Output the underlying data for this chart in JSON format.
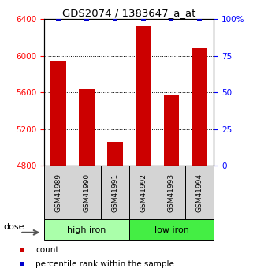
{
  "title": "GDS2074 / 1383647_a_at",
  "categories": [
    "GSM41989",
    "GSM41990",
    "GSM41991",
    "GSM41992",
    "GSM41993",
    "GSM41994"
  ],
  "bar_values": [
    5950,
    5640,
    5060,
    6320,
    5570,
    6080
  ],
  "percentile_values": [
    100,
    100,
    100,
    100,
    100,
    100
  ],
  "bar_color": "#cc0000",
  "dot_color": "#0000cc",
  "ylim_left": [
    4800,
    6400
  ],
  "ylim_right": [
    0,
    100
  ],
  "yticks_left": [
    4800,
    5200,
    5600,
    6000,
    6400
  ],
  "yticks_right": [
    0,
    25,
    50,
    75,
    100
  ],
  "groups": [
    {
      "label": "high iron",
      "indices": [
        0,
        1,
        2
      ],
      "color": "#aaffaa"
    },
    {
      "label": "low iron",
      "indices": [
        3,
        4,
        5
      ],
      "color": "#44ee44"
    }
  ],
  "dose_label": "dose",
  "legend_count_label": "count",
  "legend_pct_label": "percentile rank within the sample",
  "bar_width": 0.55,
  "xlim": [
    -0.5,
    5.5
  ]
}
